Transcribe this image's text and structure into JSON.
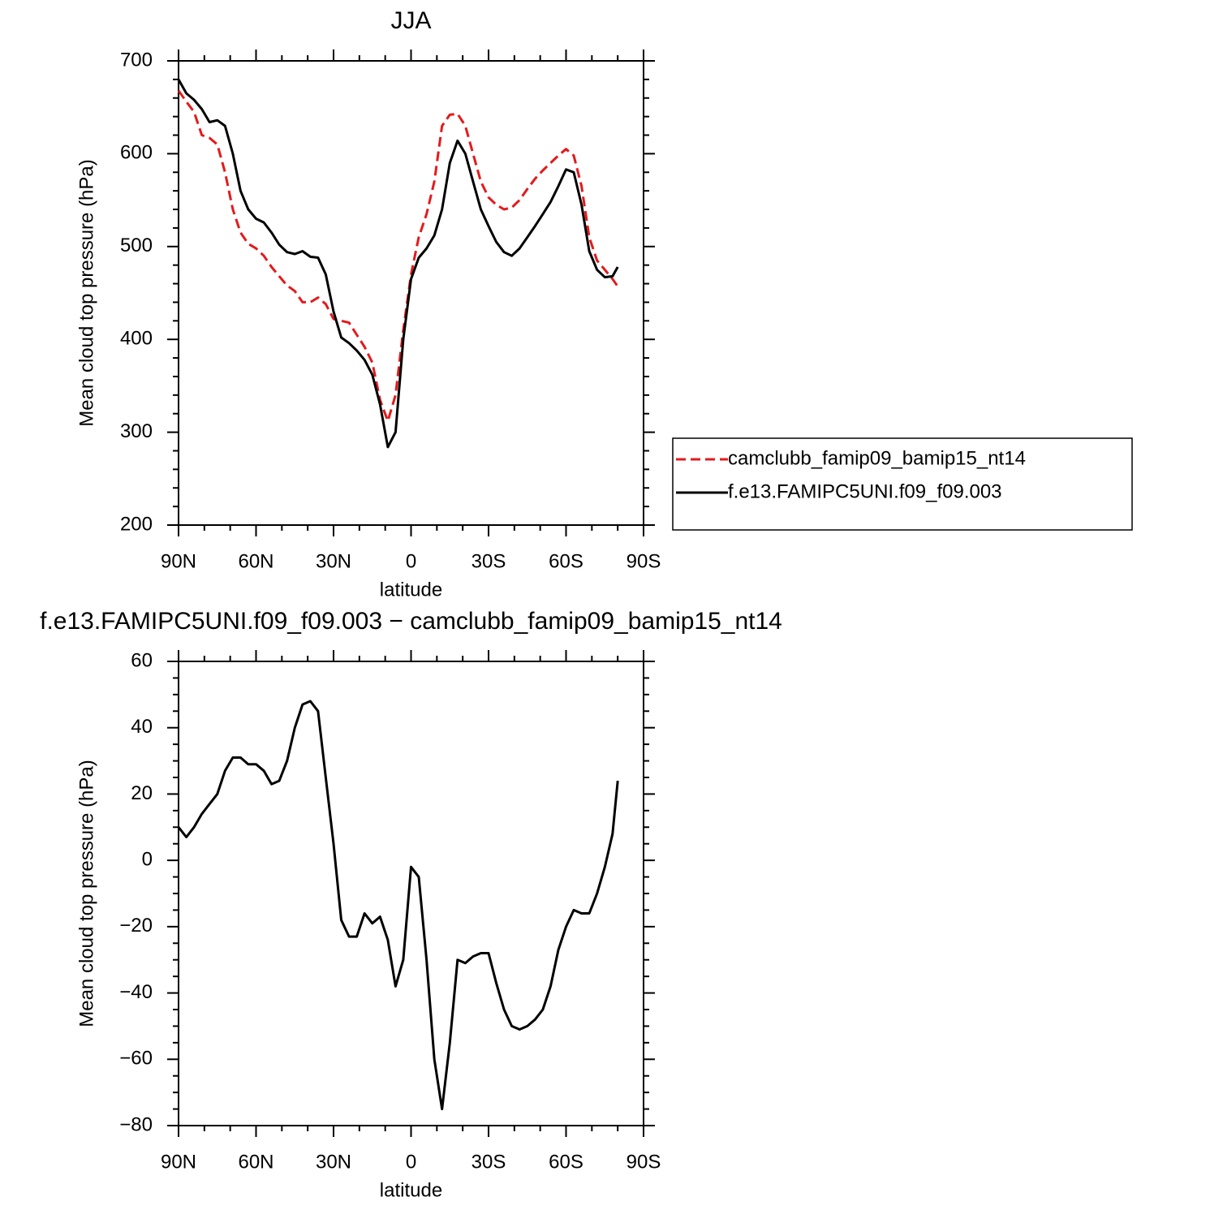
{
  "chart_data": [
    {
      "type": "line",
      "title": "JJA",
      "xlabel": "latitude",
      "ylabel": "Mean cloud top pressure (hPa)",
      "x": [
        90,
        87,
        84,
        81,
        78,
        75,
        72,
        69,
        66,
        63,
        60,
        57,
        54,
        51,
        48,
        45,
        42,
        39,
        36,
        33,
        30,
        27,
        24,
        21,
        18,
        15,
        12,
        9,
        6,
        3,
        0,
        -3,
        -6,
        -9,
        -12,
        -15,
        -18,
        -21,
        -24,
        -27,
        -30,
        -33,
        -36,
        -39,
        -42,
        -45,
        -48,
        -51,
        -54,
        -57,
        -60,
        -63,
        -66,
        -69,
        -72,
        -75,
        -78,
        -80
      ],
      "xlim": [
        90,
        -90
      ],
      "xticks": [
        {
          "value": 90,
          "label": "90N"
        },
        {
          "value": 60,
          "label": "60N"
        },
        {
          "value": 30,
          "label": "30N"
        },
        0,
        {
          "value": -30,
          "label": "30S"
        },
        {
          "value": -60,
          "label": "60S"
        },
        {
          "value": -90,
          "label": "90S"
        }
      ],
      "xminorticks": [
        80,
        70,
        50,
        40,
        20,
        10,
        -10,
        -20,
        -40,
        -50,
        -70,
        -80
      ],
      "ylim": [
        200,
        700
      ],
      "yticks": [
        200,
        300,
        400,
        500,
        600,
        700
      ],
      "yminorticks": [
        220,
        240,
        260,
        280,
        320,
        340,
        360,
        380,
        420,
        440,
        460,
        480,
        520,
        540,
        560,
        580,
        620,
        640,
        660,
        680
      ],
      "legend": "outside-right",
      "series": [
        {
          "name": "camclubb_famip09_bamip15_nt14",
          "color": "#e41a1c",
          "linestyle": "dashed",
          "values": [
            668,
            656,
            645,
            620,
            617,
            610,
            580,
            540,
            515,
            503,
            498,
            490,
            478,
            468,
            458,
            452,
            440,
            440,
            445,
            438,
            422,
            420,
            418,
            405,
            392,
            375,
            335,
            312,
            340,
            410,
            470,
            510,
            535,
            570,
            630,
            642,
            643,
            630,
            600,
            570,
            553,
            545,
            540,
            542,
            550,
            562,
            573,
            582,
            590,
            598,
            605,
            598,
            565,
            510,
            485,
            475,
            465,
            457
          ]
        },
        {
          "name": "f.e13.FAMIPC5UNI.f09_f09.003",
          "color": "#000000",
          "linestyle": "solid",
          "values": [
            680,
            665,
            658,
            648,
            634,
            636,
            630,
            600,
            560,
            540,
            530,
            526,
            515,
            502,
            494,
            492,
            495,
            489,
            488,
            470,
            430,
            402,
            396,
            388,
            378,
            362,
            330,
            284,
            300,
            400,
            465,
            488,
            498,
            512,
            540,
            590,
            614,
            600,
            570,
            540,
            522,
            505,
            494,
            490,
            498,
            510,
            522,
            535,
            548,
            565,
            583,
            580,
            545,
            495,
            475,
            467,
            468,
            478
          ]
        }
      ]
    },
    {
      "type": "line",
      "title": "f.e13.FAMIPC5UNI.f09_f09.003 − camclubb_famip09_bamip15_nt14",
      "xlabel": "latitude",
      "ylabel": "Mean cloud top pressure (hPa)",
      "x": [
        90,
        87,
        84,
        81,
        78,
        75,
        72,
        69,
        66,
        63,
        60,
        57,
        54,
        51,
        48,
        45,
        42,
        39,
        36,
        33,
        30,
        27,
        24,
        21,
        18,
        15,
        12,
        9,
        6,
        3,
        0,
        -3,
        -6,
        -9,
        -12,
        -15,
        -18,
        -21,
        -24,
        -27,
        -30,
        -33,
        -36,
        -39,
        -42,
        -45,
        -48,
        -51,
        -54,
        -57,
        -60,
        -63,
        -66,
        -69,
        -72,
        -75,
        -78,
        -80
      ],
      "xlim": [
        90,
        -90
      ],
      "xticks": [
        {
          "value": 90,
          "label": "90N"
        },
        {
          "value": 60,
          "label": "60N"
        },
        {
          "value": 30,
          "label": "30N"
        },
        0,
        {
          "value": -30,
          "label": "30S"
        },
        {
          "value": -60,
          "label": "60S"
        },
        {
          "value": -90,
          "label": "90S"
        }
      ],
      "xminorticks": [
        80,
        70,
        50,
        40,
        20,
        10,
        -10,
        -20,
        -40,
        -50,
        -70,
        -80
      ],
      "ylim": [
        -80,
        60
      ],
      "yticks": [
        {
          "value": -80,
          "label": "−80"
        },
        {
          "value": -60,
          "label": "−60"
        },
        {
          "value": -40,
          "label": "−40"
        },
        {
          "value": -20,
          "label": "−20"
        },
        0,
        20,
        40,
        60
      ],
      "yminorticks": [
        -75,
        -70,
        -65,
        -55,
        -50,
        -45,
        -35,
        -30,
        -25,
        -15,
        -10,
        -5,
        5,
        10,
        15,
        25,
        30,
        35,
        45,
        50,
        55
      ],
      "series": [
        {
          "color": "#000000",
          "linestyle": "solid",
          "values": [
            10,
            7,
            10,
            14,
            17,
            20,
            27,
            31,
            31,
            29,
            29,
            27,
            23,
            24,
            30,
            40,
            47,
            48,
            45,
            25,
            5,
            -18,
            -23,
            -23,
            -16,
            -19,
            -17,
            -24,
            -38,
            -30,
            -2,
            -5,
            -30,
            -60,
            -75,
            -55,
            -30,
            -31,
            -29,
            -28,
            -28,
            -37,
            -45,
            -50,
            -51,
            -50,
            -48,
            -45,
            -38,
            -27,
            -20,
            -15,
            -16,
            -16,
            -10,
            -2,
            8,
            24
          ]
        }
      ]
    }
  ]
}
